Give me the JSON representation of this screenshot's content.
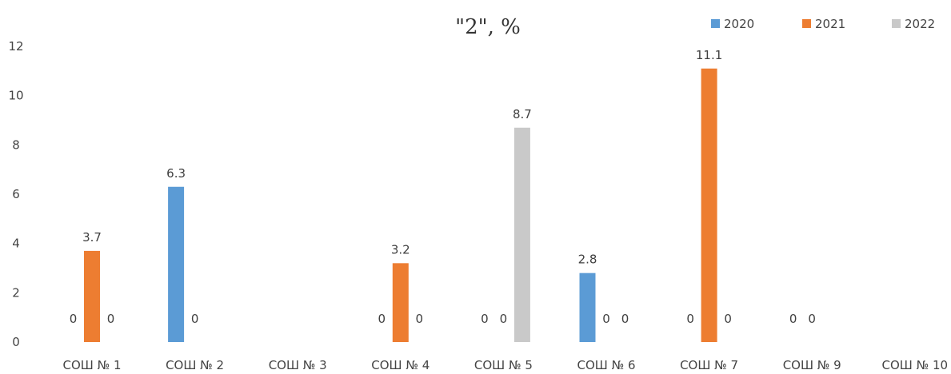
{
  "chart_data": {
    "type": "bar",
    "title": "\"2\", %",
    "categories": [
      "СОШ № 1",
      "СОШ № 2",
      "СОШ № 3",
      "СОШ № 4",
      "СОШ № 5",
      "СОШ № 6",
      "СОШ № 7",
      "СОШ № 9",
      "СОШ № 10"
    ],
    "series": [
      {
        "name": "2020",
        "color": "#5B9BD5",
        "values": [
          null,
          6.3,
          null,
          null,
          0,
          2.8,
          0,
          0,
          null
        ]
      },
      {
        "name": "2021",
        "color": "#ED7D31",
        "values": [
          3.7,
          null,
          null,
          3.2,
          null,
          null,
          11.1,
          null,
          null
        ]
      },
      {
        "name": "2022",
        "color": "#C9C9C9",
        "values": [
          null,
          null,
          null,
          null,
          8.7,
          null,
          null,
          null,
          null
        ]
      }
    ],
    "data_labels": [
      {
        "category": 0,
        "series": 0,
        "text": "0"
      },
      {
        "category": 0,
        "series": 1,
        "text": "3.7"
      },
      {
        "category": 0,
        "series": 2,
        "text": "0"
      },
      {
        "category": 1,
        "series": 0,
        "text": "6.3"
      },
      {
        "category": 1,
        "series": 1,
        "text": "0"
      },
      {
        "category": 3,
        "series": 0,
        "text": "0"
      },
      {
        "category": 3,
        "series": 1,
        "text": "3.2"
      },
      {
        "category": 3,
        "series": 2,
        "text": "0"
      },
      {
        "category": 4,
        "series": 0,
        "text": "0"
      },
      {
        "category": 4,
        "series": 1,
        "text": "0"
      },
      {
        "category": 4,
        "series": 2,
        "text": "8.7"
      },
      {
        "category": 5,
        "series": 0,
        "text": "2.8"
      },
      {
        "category": 5,
        "series": 1,
        "text": "0"
      },
      {
        "category": 5,
        "series": 2,
        "text": "0"
      },
      {
        "category": 6,
        "series": 0,
        "text": "0"
      },
      {
        "category": 6,
        "series": 1,
        "text": "11.1"
      },
      {
        "category": 6,
        "series": 2,
        "text": "0"
      },
      {
        "category": 7,
        "series": 0,
        "text": "0"
      },
      {
        "category": 7,
        "series": 1,
        "text": "0"
      }
    ],
    "ylim": [
      0,
      12
    ],
    "yticks": [
      0,
      2,
      4,
      6,
      8,
      10,
      12
    ],
    "xlabel": "",
    "ylabel": "",
    "grid": false,
    "legend_position": "top-right"
  }
}
